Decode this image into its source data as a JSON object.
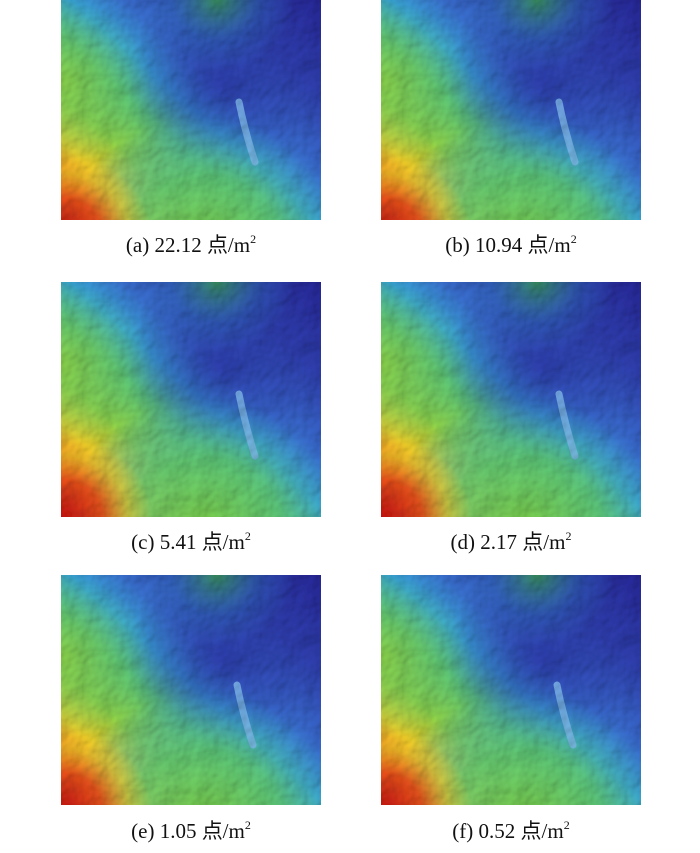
{
  "figure": {
    "panels": [
      {
        "label": "(a)",
        "value": "22.12",
        "unit": "点/m",
        "exp": "2"
      },
      {
        "label": "(b)",
        "value": "10.94",
        "unit": "点/m",
        "exp": "2"
      },
      {
        "label": "(c)",
        "value": "5.41",
        "unit": "点/m",
        "exp": "2"
      },
      {
        "label": "(d)",
        "value": "2.17",
        "unit": "点/m",
        "exp": "2"
      },
      {
        "label": "(e)",
        "value": "1.05",
        "unit": "点/m",
        "exp": "2"
      },
      {
        "label": "(f)",
        "value": "0.52",
        "unit": "点/m",
        "exp": "2"
      }
    ],
    "colors": {
      "low": "#2a2aa8",
      "midlow": "#3a78d8",
      "mid": "#3ec8c8",
      "midhigh": "#7ed24a",
      "high": "#e8d22a",
      "peak": "#d8281a"
    }
  }
}
